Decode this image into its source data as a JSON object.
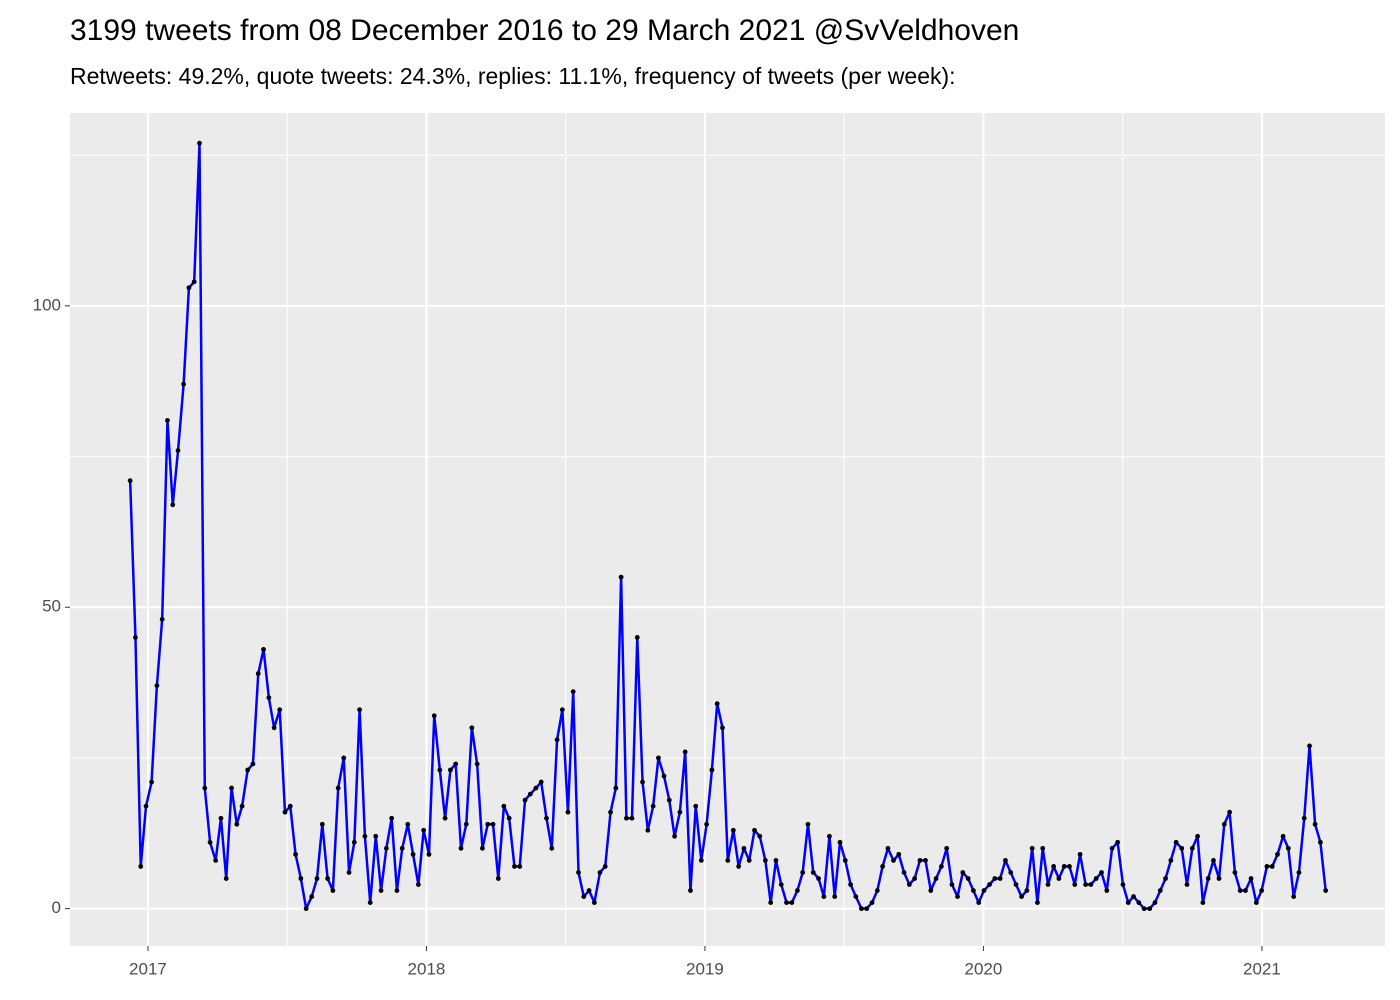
{
  "chart_data": {
    "type": "line",
    "title": "3199 tweets from 08 December 2016 to 29 March 2021 @SvVeldhoven",
    "subtitle": "Retweets: 49.2%, quote tweets: 24.3%, replies: 11.1%, frequency of tweets (per week):",
    "x": [
      2016.936,
      2016.955,
      2016.974,
      2016.993,
      2017.013,
      2017.032,
      2017.051,
      2017.07,
      2017.089,
      2017.108,
      2017.128,
      2017.147,
      2017.166,
      2017.185,
      2017.204,
      2017.223,
      2017.243,
      2017.262,
      2017.281,
      2017.3,
      2017.319,
      2017.338,
      2017.358,
      2017.377,
      2017.396,
      2017.415,
      2017.434,
      2017.453,
      2017.473,
      2017.492,
      2017.511,
      2017.53,
      2017.549,
      2017.568,
      2017.588,
      2017.607,
      2017.626,
      2017.645,
      2017.664,
      2017.683,
      2017.703,
      2017.722,
      2017.741,
      2017.76,
      2017.779,
      2017.798,
      2017.818,
      2017.837,
      2017.856,
      2017.875,
      2017.894,
      2017.913,
      2017.933,
      2017.952,
      2017.971,
      2017.99,
      2018.009,
      2018.028,
      2018.048,
      2018.067,
      2018.086,
      2018.105,
      2018.124,
      2018.143,
      2018.163,
      2018.182,
      2018.201,
      2018.22,
      2018.239,
      2018.258,
      2018.278,
      2018.297,
      2018.316,
      2018.335,
      2018.354,
      2018.373,
      2018.393,
      2018.412,
      2018.431,
      2018.45,
      2018.469,
      2018.488,
      2018.508,
      2018.527,
      2018.546,
      2018.565,
      2018.584,
      2018.603,
      2018.623,
      2018.642,
      2018.661,
      2018.68,
      2018.699,
      2018.718,
      2018.738,
      2018.757,
      2018.776,
      2018.795,
      2018.814,
      2018.833,
      2018.853,
      2018.872,
      2018.891,
      2018.91,
      2018.929,
      2018.948,
      2018.967,
      2018.987,
      2019.006,
      2019.025,
      2019.044,
      2019.063,
      2019.082,
      2019.102,
      2019.121,
      2019.14,
      2019.159,
      2019.178,
      2019.197,
      2019.217,
      2019.236,
      2019.255,
      2019.274,
      2019.293,
      2019.312,
      2019.332,
      2019.351,
      2019.37,
      2019.389,
      2019.408,
      2019.427,
      2019.447,
      2019.466,
      2019.485,
      2019.504,
      2019.523,
      2019.542,
      2019.562,
      2019.581,
      2019.6,
      2019.619,
      2019.638,
      2019.657,
      2019.677,
      2019.696,
      2019.715,
      2019.734,
      2019.753,
      2019.772,
      2019.792,
      2019.811,
      2019.83,
      2019.849,
      2019.868,
      2019.887,
      2019.907,
      2019.926,
      2019.945,
      2019.964,
      2019.983,
      2020.002,
      2020.022,
      2020.041,
      2020.06,
      2020.079,
      2020.098,
      2020.117,
      2020.137,
      2020.156,
      2020.175,
      2020.194,
      2020.213,
      2020.232,
      2020.252,
      2020.271,
      2020.29,
      2020.309,
      2020.328,
      2020.347,
      2020.367,
      2020.386,
      2020.405,
      2020.424,
      2020.443,
      2020.462,
      2020.482,
      2020.501,
      2020.52,
      2020.539,
      2020.558,
      2020.577,
      2020.597,
      2020.616,
      2020.635,
      2020.654,
      2020.673,
      2020.692,
      2020.712,
      2020.731,
      2020.75,
      2020.769,
      2020.788,
      2020.807,
      2020.826,
      2020.846,
      2020.865,
      2020.884,
      2020.903,
      2020.922,
      2020.941,
      2020.961,
      2020.98,
      2020.999,
      2021.018,
      2021.037,
      2021.056,
      2021.076,
      2021.095,
      2021.114,
      2021.133,
      2021.152,
      2021.171,
      2021.191,
      2021.21,
      2021.229
    ],
    "series": [
      {
        "color": "#0000ff",
        "point_color": "#000000",
        "values": [
          71,
          45,
          7,
          17,
          21,
          37,
          48,
          81,
          67,
          76,
          87,
          103,
          104,
          127,
          20,
          11,
          8,
          15,
          5,
          20,
          14,
          17,
          23,
          24,
          39,
          43,
          35,
          30,
          33,
          16,
          17,
          9,
          5,
          0,
          2,
          5,
          14,
          5,
          3,
          20,
          25,
          6,
          11,
          33,
          12,
          1,
          12,
          3,
          10,
          15,
          3,
          10,
          14,
          9,
          4,
          13,
          9,
          32,
          23,
          15,
          23,
          24,
          10,
          14,
          30,
          24,
          10,
          14,
          14,
          5,
          17,
          15,
          7,
          7,
          18,
          19,
          20,
          21,
          15,
          10,
          28,
          33,
          16,
          36,
          6,
          2,
          3,
          1,
          6,
          7,
          16,
          20,
          55,
          15,
          15,
          45,
          21,
          13,
          17,
          25,
          22,
          18,
          12,
          16,
          26,
          3,
          17,
          8,
          14,
          23,
          34,
          30,
          8,
          13,
          7,
          10,
          8,
          13,
          12,
          8,
          1,
          8,
          4,
          1,
          1,
          3,
          6,
          14,
          6,
          5,
          2,
          12,
          2,
          11,
          8,
          4,
          2,
          0,
          0,
          1,
          3,
          7,
          10,
          8,
          9,
          6,
          4,
          5,
          8,
          8,
          3,
          5,
          7,
          10,
          4,
          2,
          6,
          5,
          3,
          1,
          3,
          4,
          5,
          5,
          8,
          6,
          4,
          2,
          3,
          10,
          1,
          10,
          4,
          7,
          5,
          7,
          7,
          4,
          9,
          4,
          4,
          5,
          6,
          3,
          10,
          11,
          4,
          1,
          2,
          1,
          0,
          0,
          1,
          3,
          5,
          8,
          11,
          10,
          4,
          10,
          12,
          1,
          5,
          8,
          5,
          14,
          16,
          6,
          3,
          3,
          5,
          1,
          3,
          7,
          7,
          9,
          12,
          10,
          2,
          6,
          15,
          27,
          14,
          11,
          3
        ]
      }
    ],
    "xlim": [
      2016.72,
      2021.442
    ],
    "xticks": [
      2017,
      2018,
      2019,
      2020,
      2021
    ],
    "ylim": [
      -6.2,
      132
    ],
    "yticks": [
      0,
      50,
      100
    ],
    "grid": true
  }
}
